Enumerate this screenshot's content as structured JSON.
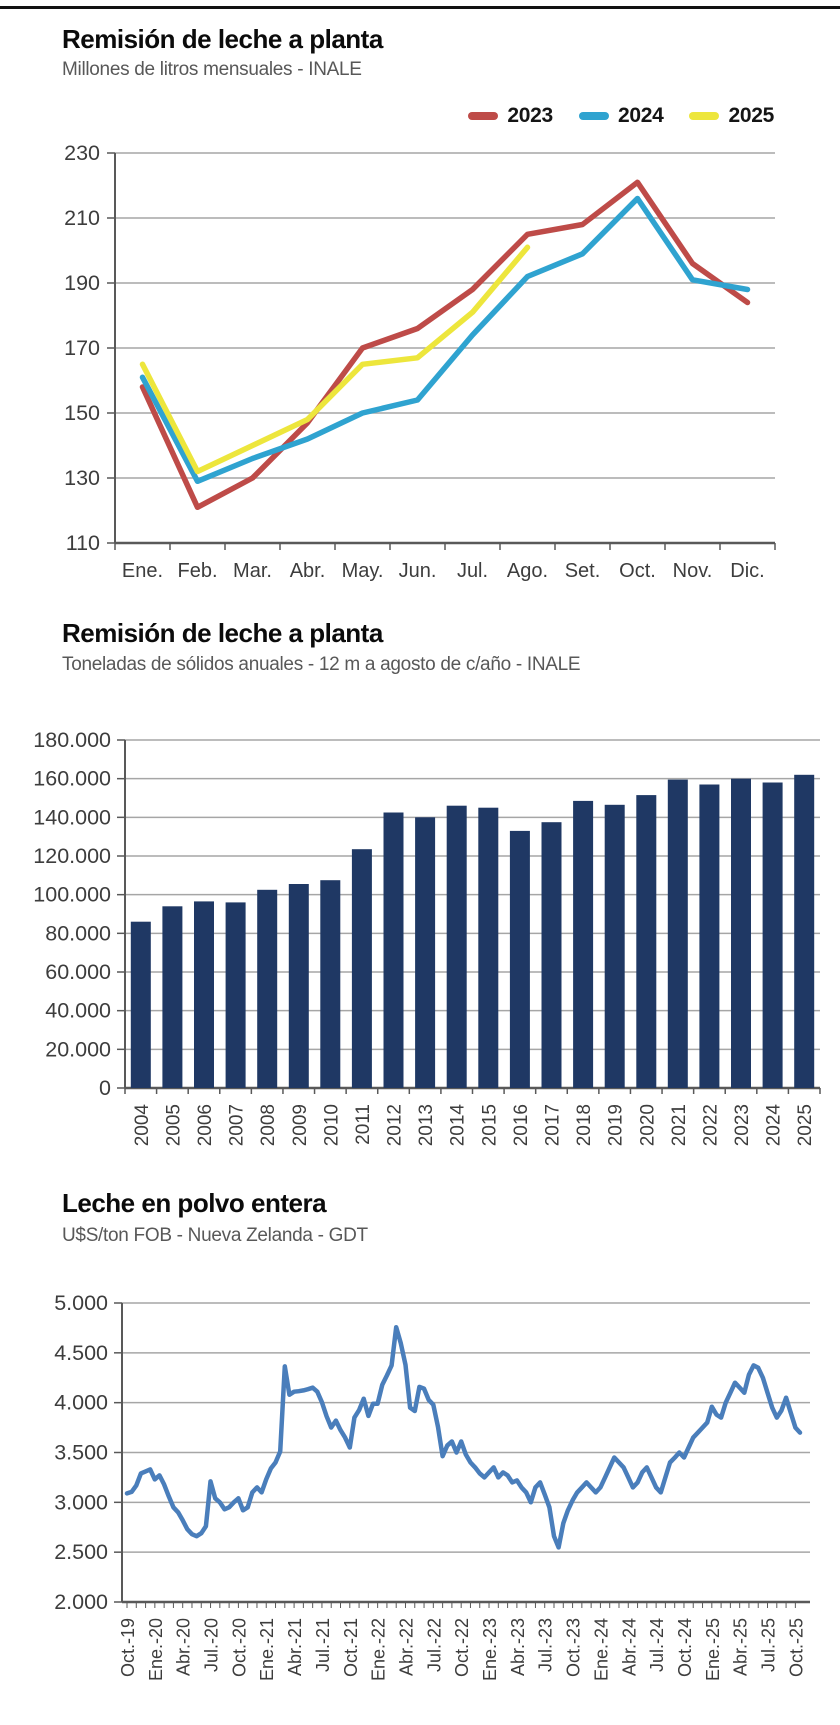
{
  "chart_data": [
    {
      "type": "line",
      "title": "Remisión de leche a planta",
      "subtitle": "Millones de litros mensuales - INALE",
      "categories": [
        "Ene.",
        "Feb.",
        "Mar.",
        "Abr.",
        "May.",
        "Jun.",
        "Jul.",
        "Ago.",
        "Set.",
        "Oct.",
        "Nov.",
        "Dic."
      ],
      "series": [
        {
          "name": "2023",
          "color": "#BE4B48",
          "values": [
            158,
            121,
            130,
            147,
            170,
            176,
            188,
            205,
            208,
            221,
            196,
            184
          ]
        },
        {
          "name": "2024",
          "color": "#2FA3D0",
          "values": [
            161,
            129,
            136,
            142,
            150,
            154,
            174,
            192,
            199,
            216,
            191,
            188
          ]
        },
        {
          "name": "2025",
          "color": "#EDE63C",
          "values": [
            165,
            132,
            140,
            148,
            165,
            167,
            181,
            201
          ]
        }
      ],
      "ylim": [
        110,
        230
      ],
      "ytick_step": 20,
      "ytick_labels": [
        "230",
        "210",
        "190",
        "170",
        "150",
        "130",
        "110"
      ],
      "grid": true,
      "legend_position": "top-right",
      "colors": {
        "grid": "#A6A6A6",
        "axis": "#595959",
        "tick_text": "#3d3d3d"
      }
    },
    {
      "type": "bar",
      "title": "Remisión de leche a planta",
      "subtitle": "Toneladas de sólidos anuales - 12 m a agosto  de c/año - INALE",
      "categories": [
        "2004",
        "2005",
        "2006",
        "2007",
        "2008",
        "2009",
        "2010",
        "2011",
        "2012",
        "2013",
        "2014",
        "2015",
        "2016",
        "2017",
        "2018",
        "2019",
        "2020",
        "2021",
        "2022",
        "2023",
        "2024",
        "2025"
      ],
      "values": [
        86000,
        94000,
        96500,
        96000,
        102500,
        105500,
        107500,
        123500,
        142500,
        140000,
        146000,
        145000,
        133000,
        137500,
        148500,
        146500,
        151500,
        159500,
        157000,
        160000,
        158000,
        162000
      ],
      "ylim": [
        0,
        180000
      ],
      "ytick_step": 20000,
      "ytick_labels": [
        "180.000",
        "160.000",
        "140.000",
        "120.000",
        "100.000",
        "80.000",
        "60.000",
        "40.000",
        "20.000",
        "0"
      ],
      "grid": true,
      "bar_color": "#1F3864",
      "colors": {
        "grid": "#A6A6A6",
        "axis": "#595959",
        "tick_text": "#3d3d3d"
      }
    },
    {
      "type": "line",
      "title": "Leche en polvo entera",
      "subtitle": "U$S/ton FOB - Nueva Zelanda - GDT",
      "x_tick_labels": [
        "Oct.-19",
        "Ene.-20",
        "Abr.-20",
        "Jul.-20",
        "Oct.-20",
        "Ene.-21",
        "Abr.-21",
        "Jul.-21",
        "Oct.-21",
        "Ene.-22",
        "Abr.-22",
        "Jul.-22",
        "Oct.-22",
        "Ene.-23",
        "Abr.-23",
        "Jul.-23",
        "Oct.-23",
        "Ene.-24",
        "Abr.-24",
        "Jul.-24",
        "Oct.-24",
        "Ene.-25",
        "Abr.-25",
        "Jul.-25",
        "Oct.-25"
      ],
      "series": [
        {
          "name": "Leche en polvo entera",
          "color": "#4A7EBB",
          "values": [
            3090,
            3105,
            3170,
            3290,
            3310,
            3330,
            3230,
            3270,
            3180,
            3060,
            2950,
            2900,
            2820,
            2730,
            2680,
            2660,
            2690,
            2760,
            3210,
            3040,
            3000,
            2930,
            2950,
            3000,
            3040,
            2920,
            2950,
            3100,
            3150,
            3100,
            3230,
            3340,
            3400,
            3510,
            4364,
            4080,
            4110,
            4115,
            4123,
            4135,
            4150,
            4110,
            4005,
            3863,
            3751,
            3820,
            3725,
            3650,
            3550,
            3850,
            3925,
            4040,
            3867,
            3990,
            3990,
            4180,
            4273,
            4374,
            4757,
            4596,
            4379,
            3950,
            3916,
            4158,
            4141,
            4028,
            3980,
            3757,
            3463,
            3570,
            3610,
            3500,
            3610,
            3480,
            3400,
            3350,
            3290,
            3250,
            3300,
            3350,
            3250,
            3300,
            3270,
            3200,
            3220,
            3150,
            3100,
            3000,
            3150,
            3200,
            3080,
            2950,
            2660,
            2548,
            2790,
            2920,
            3020,
            3100,
            3150,
            3200,
            3150,
            3100,
            3150,
            3250,
            3350,
            3450,
            3400,
            3350,
            3250,
            3150,
            3200,
            3300,
            3350,
            3250,
            3150,
            3100,
            3250,
            3400,
            3448,
            3500,
            3450,
            3550,
            3650,
            3700,
            3750,
            3800,
            3960,
            3880,
            3850,
            4000,
            4100,
            4200,
            4150,
            4100,
            4280,
            4374,
            4350,
            4250,
            4100,
            3950,
            3850,
            3920,
            4050,
            3900,
            3750,
            3700
          ]
        }
      ],
      "ylim": [
        2000,
        5000
      ],
      "ytick_step": 500,
      "ytick_labels": [
        "5.000",
        "4.500",
        "4.000",
        "3.500",
        "3.000",
        "2.500",
        "2.000"
      ],
      "grid": true,
      "colors": {
        "grid": "#A6A6A6",
        "axis": "#595959",
        "tick_text": "#3d3d3d"
      }
    }
  ]
}
